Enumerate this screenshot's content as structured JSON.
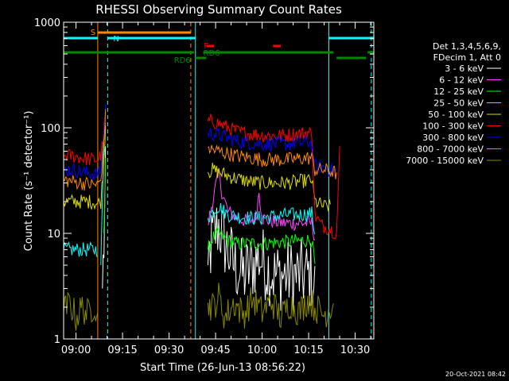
{
  "chart_data": {
    "type": "line",
    "title": "RHESSI Observing Summary Count Rates",
    "xlabel": "Start Time (26-Jun-13 08:56:22)",
    "ylabel": "Count Rate (s⁻¹ detector⁻¹)",
    "y_scale": "log",
    "ylim": [
      1,
      1000
    ],
    "y_ticks": [
      {
        "value": 1,
        "label": "1"
      },
      {
        "value": 10,
        "label": "10"
      },
      {
        "value": 100,
        "label": "100"
      },
      {
        "value": 1000,
        "label": "1000"
      }
    ],
    "xlim_minutes": [
      0,
      100
    ],
    "x_ticks": [
      {
        "label": "09:00",
        "min": 4
      },
      {
        "label": "09:15",
        "min": 19
      },
      {
        "label": "09:30",
        "min": 34
      },
      {
        "label": "09:45",
        "min": 49
      },
      {
        "label": "10:00",
        "min": 64
      },
      {
        "label": "10:15",
        "min": 79
      },
      {
        "label": "10:30",
        "min": 94
      }
    ],
    "legend_header": [
      "Det 1,3,4,5,6,9,",
      "FDecim 1, Att 0"
    ],
    "legend_placement": "right",
    "series": [
      {
        "name": "3 - 6 keV",
        "color": "#ffffff",
        "points": [
          [
            0,
            null
          ],
          [
            12,
            null
          ],
          [
            12.5,
            3
          ],
          [
            13,
            8
          ],
          [
            13.5,
            30
          ],
          [
            14,
            null
          ],
          [
            46,
            null
          ],
          [
            46.5,
            5
          ],
          [
            48,
            9
          ],
          [
            50,
            12
          ],
          [
            52,
            8
          ],
          [
            55,
            5
          ],
          [
            58,
            4
          ],
          [
            61,
            5
          ],
          [
            63,
            6
          ],
          [
            65,
            5
          ],
          [
            68,
            4
          ],
          [
            72,
            4
          ],
          [
            76,
            4
          ],
          [
            80,
            4
          ],
          [
            81,
            3
          ],
          [
            82,
            null
          ],
          [
            99,
            null
          ]
        ]
      },
      {
        "name": "6 - 12 keV",
        "color": "#ff44ff",
        "points": [
          [
            12,
            null
          ],
          [
            13,
            10
          ],
          [
            13.5,
            40
          ],
          [
            14,
            null
          ],
          [
            46,
            null
          ],
          [
            46.5,
            12
          ],
          [
            48,
            20
          ],
          [
            50,
            38
          ],
          [
            51,
            25
          ],
          [
            53,
            16
          ],
          [
            56,
            14
          ],
          [
            59,
            13
          ],
          [
            62,
            14
          ],
          [
            63,
            25
          ],
          [
            64,
            14
          ],
          [
            67,
            13
          ],
          [
            71,
            12.5
          ],
          [
            75,
            12.5
          ],
          [
            80,
            12.5
          ],
          [
            81,
            9
          ],
          [
            82,
            null
          ],
          [
            99,
            null
          ]
        ]
      },
      {
        "name": "12 - 25 keV",
        "color": "#00ff00",
        "points": [
          [
            12,
            null
          ],
          [
            13,
            10
          ],
          [
            13.5,
            45
          ],
          [
            14,
            null
          ],
          [
            46,
            null
          ],
          [
            46.5,
            7
          ],
          [
            48,
            9
          ],
          [
            50,
            10
          ],
          [
            53,
            8.5
          ],
          [
            56,
            8
          ],
          [
            60,
            8
          ],
          [
            64,
            8
          ],
          [
            68,
            8.2
          ],
          [
            72,
            8.3
          ],
          [
            76,
            8.5
          ],
          [
            80,
            8.7
          ],
          [
            81,
            5
          ],
          [
            82,
            null
          ],
          [
            99,
            null
          ]
        ]
      },
      {
        "name": "25 - 50 keV",
        "color": "#00ffff",
        "points": [
          [
            0,
            7
          ],
          [
            3,
            7
          ],
          [
            6,
            7
          ],
          [
            9,
            7
          ],
          [
            11,
            7
          ],
          [
            11.5,
            null
          ],
          [
            12,
            5
          ],
          [
            13,
            80
          ],
          [
            13.5,
            120
          ],
          [
            14,
            null
          ],
          [
            46,
            null
          ],
          [
            46.5,
            14
          ],
          [
            48,
            16
          ],
          [
            50,
            18
          ],
          [
            53,
            15
          ],
          [
            56,
            14.5
          ],
          [
            60,
            14
          ],
          [
            64,
            14
          ],
          [
            68,
            14.5
          ],
          [
            72,
            15
          ],
          [
            76,
            15
          ],
          [
            80,
            15.5
          ],
          [
            81,
            10
          ],
          [
            82,
            null
          ],
          [
            99,
            null
          ]
        ]
      },
      {
        "name": "50 - 100 keV",
        "color": "#dddd00",
        "points": [
          [
            0,
            20
          ],
          [
            3,
            20
          ],
          [
            6,
            20
          ],
          [
            9,
            20
          ],
          [
            11,
            19
          ],
          [
            12,
            20
          ],
          [
            13,
            50
          ],
          [
            13.5,
            110
          ],
          [
            14,
            null
          ],
          [
            46,
            null
          ],
          [
            46.5,
            38
          ],
          [
            48,
            40
          ],
          [
            50,
            38
          ],
          [
            53,
            35
          ],
          [
            56,
            33
          ],
          [
            60,
            31
          ],
          [
            64,
            30
          ],
          [
            68,
            30
          ],
          [
            72,
            30
          ],
          [
            76,
            31
          ],
          [
            80,
            32
          ],
          [
            81,
            20
          ],
          [
            84,
            18
          ],
          [
            86,
            18
          ],
          [
            87,
            null
          ],
          [
            99,
            null
          ]
        ]
      },
      {
        "name": "100 - 300 keV",
        "color": "#ff0000",
        "points": [
          [
            0,
            55
          ],
          [
            3,
            54
          ],
          [
            6,
            52
          ],
          [
            9,
            50
          ],
          [
            11,
            50
          ],
          [
            12,
            55
          ],
          [
            13,
            90
          ],
          [
            13.5,
            150
          ],
          [
            14,
            null
          ],
          [
            46,
            null
          ],
          [
            46.5,
            115
          ],
          [
            48,
            115
          ],
          [
            50,
            110
          ],
          [
            53,
            100
          ],
          [
            56,
            92
          ],
          [
            60,
            88
          ],
          [
            64,
            85
          ],
          [
            68,
            84
          ],
          [
            72,
            85
          ],
          [
            76,
            88
          ],
          [
            80,
            90
          ],
          [
            81,
            15
          ],
          [
            83,
            12
          ],
          [
            86,
            11
          ],
          [
            88,
            10
          ],
          [
            89,
            60
          ],
          [
            90,
            null
          ]
        ]
      },
      {
        "name": "300 - 800 keV",
        "color": "#0000ff",
        "points": [
          [
            0,
            40
          ],
          [
            3,
            40
          ],
          [
            6,
            38
          ],
          [
            9,
            37
          ],
          [
            11,
            36
          ],
          [
            12,
            40
          ],
          [
            13,
            90
          ],
          [
            13.5,
            160
          ],
          [
            14,
            null
          ],
          [
            46,
            null
          ],
          [
            46.5,
            90
          ],
          [
            48,
            88
          ],
          [
            50,
            85
          ],
          [
            53,
            80
          ],
          [
            56,
            75
          ],
          [
            60,
            72
          ],
          [
            64,
            70
          ],
          [
            68,
            70
          ],
          [
            72,
            70
          ],
          [
            76,
            72
          ],
          [
            80,
            73
          ],
          [
            81,
            43
          ],
          [
            84,
            42
          ],
          [
            86,
            40
          ],
          [
            88,
            38
          ],
          [
            89,
            null
          ]
        ]
      },
      {
        "name": "800 - 7000 keV",
        "color": "#ff8800",
        "points": [
          [
            0,
            32
          ],
          [
            3,
            31
          ],
          [
            6,
            30
          ],
          [
            9,
            29
          ],
          [
            11,
            29
          ],
          [
            12,
            32
          ],
          [
            13,
            80
          ],
          [
            13.5,
            130
          ],
          [
            14,
            null
          ],
          [
            46,
            null
          ],
          [
            46.5,
            65
          ],
          [
            48,
            62
          ],
          [
            50,
            60
          ],
          [
            53,
            57
          ],
          [
            56,
            54
          ],
          [
            60,
            52
          ],
          [
            64,
            50
          ],
          [
            68,
            50
          ],
          [
            72,
            50
          ],
          [
            76,
            51
          ],
          [
            80,
            52
          ],
          [
            81,
            40
          ],
          [
            84,
            40
          ],
          [
            86,
            39
          ],
          [
            88,
            37
          ],
          [
            89,
            null
          ]
        ]
      },
      {
        "name": "7000 - 15000 keV",
        "color": "#888800",
        "points": [
          [
            0,
            1.8
          ],
          [
            2,
            2.2
          ],
          [
            4,
            1.6
          ],
          [
            6,
            2.0
          ],
          [
            8,
            1.7
          ],
          [
            10,
            2.2
          ],
          [
            11,
            1.5
          ],
          [
            12,
            null
          ],
          [
            46,
            null
          ],
          [
            46.5,
            2.2
          ],
          [
            48,
            2.0
          ],
          [
            50,
            2.5
          ],
          [
            52,
            1.6
          ],
          [
            55,
            2.2
          ],
          [
            58,
            1.7
          ],
          [
            61,
            2.4
          ],
          [
            64,
            1.8
          ],
          [
            67,
            2.3
          ],
          [
            70,
            1.6
          ],
          [
            73,
            2.2
          ],
          [
            76,
            1.8
          ],
          [
            79,
            2.4
          ],
          [
            81,
            2.0
          ],
          [
            84,
            1.7
          ],
          [
            87,
            2.2
          ],
          [
            88,
            null
          ]
        ]
      }
    ],
    "annotations": [
      {
        "label": "S",
        "color": "#ff8800"
      },
      {
        "label": "N",
        "color": "#00ffff"
      },
      {
        "label": "F",
        "color": "#ff0000"
      },
      {
        "label": "RD6",
        "color": "#008800"
      },
      {
        "label": "RD6",
        "color": "#008800"
      }
    ],
    "timestamp": "20-Oct-2021 08:42"
  }
}
